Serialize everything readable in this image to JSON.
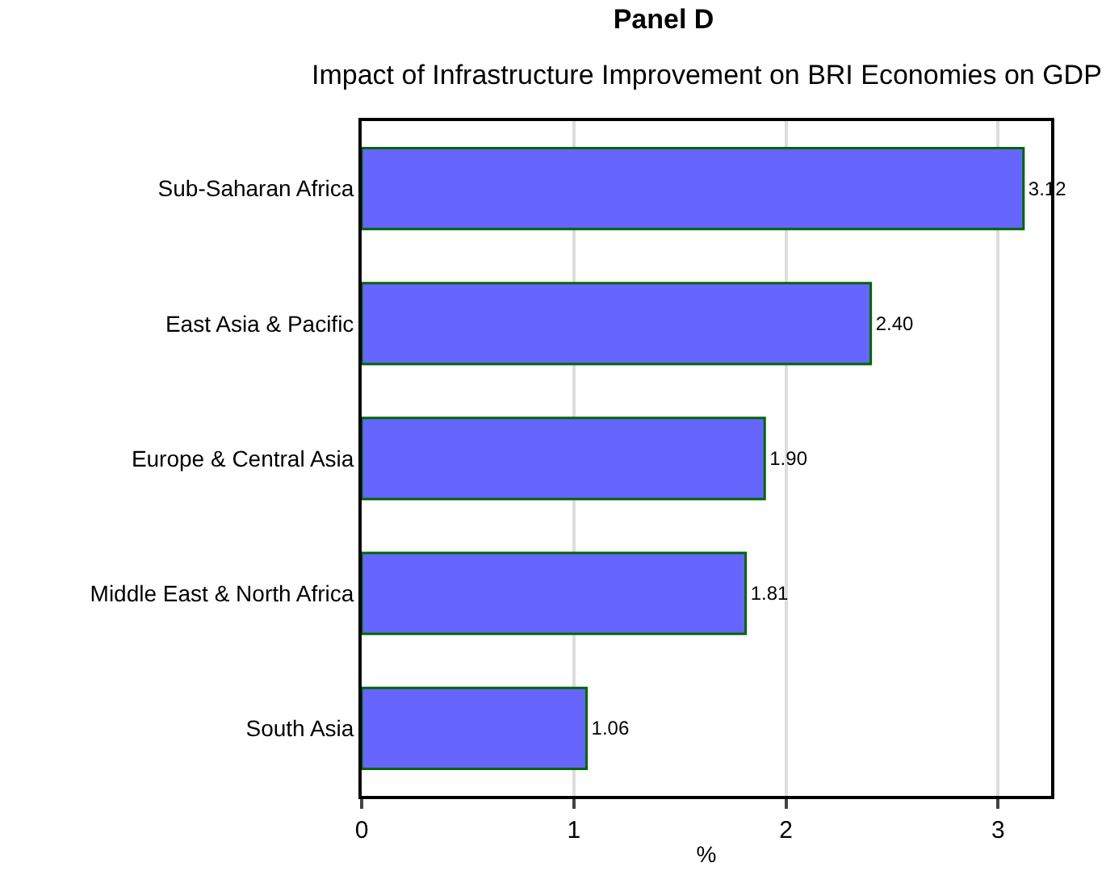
{
  "chart_data": {
    "type": "bar",
    "orientation": "horizontal",
    "title": "Panel D",
    "subtitle": "Impact of Infrastructure Improvement on BRI Economies on GDP",
    "xlabel": "%",
    "categories": [
      "Sub-Saharan Africa",
      "East Asia & Pacific",
      "Europe & Central Asia",
      "Middle East & North Africa",
      "South Asia"
    ],
    "values": [
      3.12,
      2.4,
      1.9,
      1.81,
      1.06
    ],
    "value_labels": [
      "3.12",
      "2.40",
      "1.90",
      "1.81",
      "1.06"
    ],
    "color": "#6666ff",
    "xlim": [
      0,
      3.25
    ],
    "xticks": [
      0,
      1,
      2,
      3
    ],
    "grid": "x",
    "legend": false
  }
}
